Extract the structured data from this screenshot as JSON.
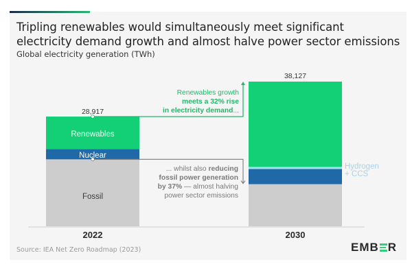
{
  "header": {
    "title": "Tripling renewables would simultaneously meet significant electricity demand growth and almost halve power sector emissions",
    "subtitle": "Global electricity generation (TWh)"
  },
  "footer": {
    "source": "Source: IEA Net Zero Roadmap (2023)",
    "logo_text": "EMBER"
  },
  "colors": {
    "renewables": "#13cf75",
    "nuclear": "#1f69a9",
    "hydrogen_ccs": "#9fe3f0",
    "fossil": "#cdcdcd",
    "growth_annotation": "#22b86a",
    "fossil_annotation": "#7a7a7a",
    "hydrogen_label": "#a8d2ea"
  },
  "chart_data": {
    "type": "bar",
    "stacked": true,
    "title": "Tripling renewables would simultaneously meet significant electricity demand growth and almost halve power sector emissions",
    "ylabel": "Global electricity generation (TWh)",
    "xlabel": "",
    "categories": [
      "2022",
      "2030"
    ],
    "ylim": [
      0,
      40000
    ],
    "grid": false,
    "series": [
      {
        "name": "Fossil",
        "values": [
          17650,
          11100
        ]
      },
      {
        "name": "Nuclear",
        "values": [
          2700,
          4000
        ]
      },
      {
        "name": "Hydrogen + CCS",
        "values": [
          0,
          550
        ]
      },
      {
        "name": "Renewables",
        "values": [
          8567,
          22477
        ]
      }
    ],
    "totals": [
      "28,917",
      "38,127"
    ],
    "segment_labels": {
      "renewables": "Renewables",
      "nuclear": "Nuclear",
      "fossil": "Fossil",
      "hydrogen_line1": "Hydrogen",
      "hydrogen_line2": "+ CCS"
    },
    "annotations": {
      "growth": {
        "line1": "Renewables growth",
        "line2": "meets a 32% rise",
        "line3_bold": "in electricity demand",
        "line3_tail": "..."
      },
      "fossil": {
        "line1_normal": "... whilst also ",
        "line1_bold": "reducing",
        "line2_bold": "fossil power generation",
        "line3_bold": "by 37%",
        "line3_normal": " — almost halving",
        "line4": "power sector emissions"
      }
    }
  }
}
